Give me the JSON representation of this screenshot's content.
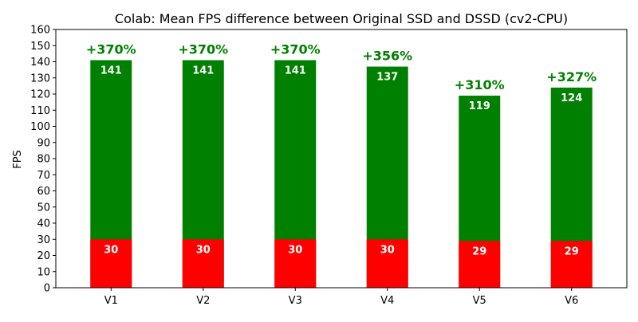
{
  "chart_data": {
    "type": "bar",
    "stacked": "overlay",
    "title": "Colab: Mean FPS difference between Original SSD and DSSD (cv2-CPU)",
    "xlabel": "",
    "ylabel": "FPS",
    "ylim": [
      0,
      160
    ],
    "yticks": [
      0,
      10,
      20,
      30,
      40,
      50,
      60,
      70,
      80,
      90,
      100,
      110,
      120,
      130,
      140,
      150,
      160
    ],
    "grid": false,
    "categories": [
      "V1",
      "V2",
      "V3",
      "V4",
      "V5",
      "V6"
    ],
    "series": [
      {
        "values": [
          141,
          141,
          141,
          137,
          119,
          124
        ],
        "color": "#008000"
      },
      {
        "values": [
          30,
          30,
          30,
          30,
          29,
          29
        ],
        "color": "#ff0000"
      }
    ],
    "annotations": [
      "+370%",
      "+370%",
      "+370%",
      "+356%",
      "+310%",
      "+327%"
    ],
    "annotation_color": "#008000",
    "data_label_color": "#ffffff"
  }
}
